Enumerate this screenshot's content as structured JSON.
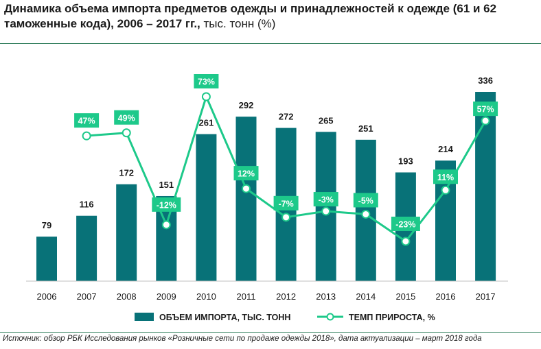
{
  "title": {
    "bold": "Динамика объема импорта предметов одежды и принадлежностей к одежде (61 и 62 таможенные кода), 2006 – 2017 гг.,",
    "normal": " тыс. тонн (%)"
  },
  "source": "Источник: обзор РБК Исследования рынков «Розничные сети по продаже одежды 2018», дата актуализации – март 2018 года",
  "colors": {
    "bar": "#087278",
    "line": "#1dc98a",
    "text": "#1a1a1a"
  },
  "chart_data": {
    "type": "bar",
    "categories": [
      "2006",
      "2007",
      "2008",
      "2009",
      "2010",
      "2011",
      "2012",
      "2013",
      "2014",
      "2015",
      "2016",
      "2017"
    ],
    "series": [
      {
        "name": "ОБЪЕМ ИМПОРТА, ТЫС. ТОНН",
        "type": "bar",
        "values": [
          79,
          116,
          172,
          151,
          261,
          292,
          272,
          265,
          251,
          193,
          214,
          336
        ]
      },
      {
        "name": "ТЕМП ПРИРОСТА, %",
        "type": "line",
        "values": [
          null,
          47,
          49,
          -12,
          73,
          12,
          -7,
          -3,
          -5,
          -23,
          11,
          57
        ],
        "labels": [
          "",
          "47%",
          "49%",
          "-12%",
          "73%",
          "12%",
          "-7%",
          "-3%",
          "-5%",
          "-23%",
          "11%",
          "57%"
        ]
      }
    ],
    "bar_axis": {
      "ylim": [
        0,
        350
      ]
    },
    "line_axis": {
      "ylim": [
        -45,
        85
      ]
    },
    "grid": false,
    "legend_position": "bottom"
  }
}
